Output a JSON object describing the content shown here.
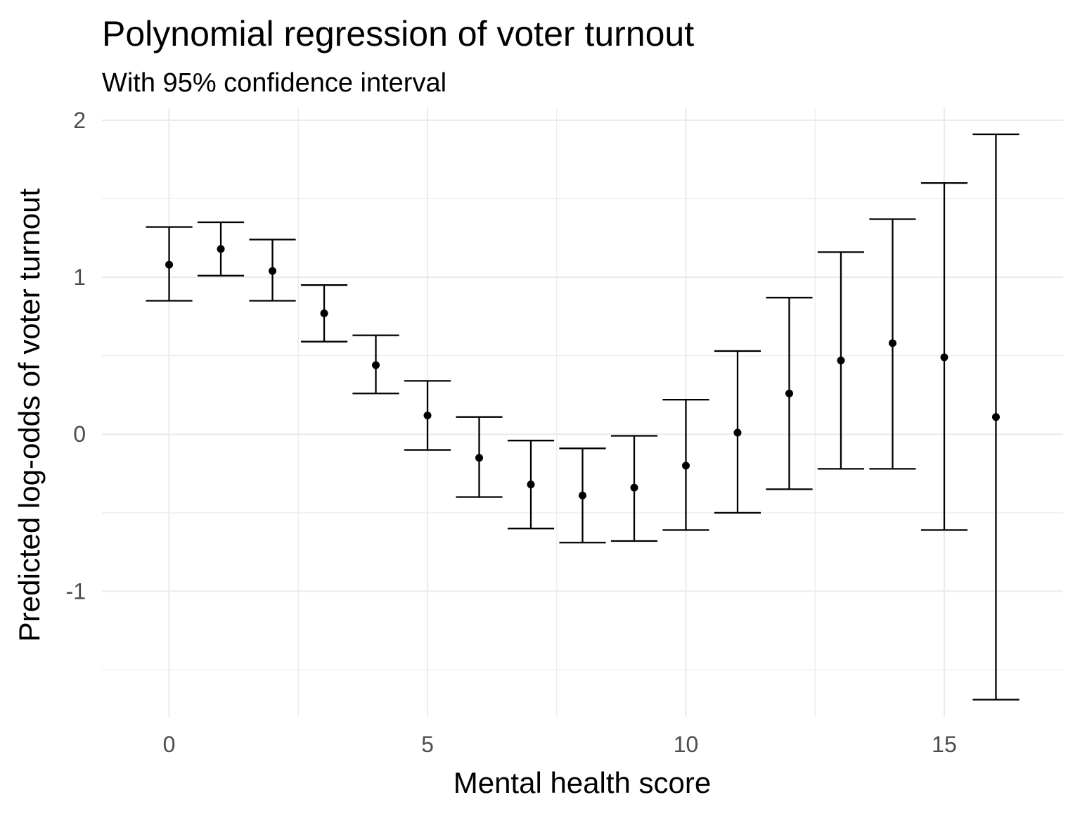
{
  "chart_data": {
    "type": "scatter",
    "title": "Polynomial regression of voter turnout",
    "subtitle": "With 95% confidence interval",
    "xlabel": "Mental health score",
    "ylabel": "Predicted log-odds of voter turnout",
    "xlim": [
      -1.3,
      17.3
    ],
    "ylim": [
      -1.8,
      2.08
    ],
    "x_ticks": [
      0,
      5,
      10,
      15
    ],
    "x_tick_labels": [
      "0",
      "5",
      "10",
      "15"
    ],
    "x_minor_ticks": [
      2.5,
      7.5,
      12.5
    ],
    "y_ticks": [
      -1,
      0,
      1,
      2
    ],
    "y_tick_labels": [
      "-1",
      "0",
      "1",
      "2"
    ],
    "y_minor_ticks": [
      -1.5,
      -0.5,
      0.5,
      1.5
    ],
    "grid": true,
    "legend": "none",
    "series": [
      {
        "x": [
          0,
          1,
          2,
          3,
          4,
          5,
          6,
          7,
          8,
          9,
          10,
          11,
          12,
          13,
          14,
          15,
          16
        ],
        "y": [
          1.08,
          1.18,
          1.04,
          0.77,
          0.44,
          0.12,
          -0.15,
          -0.32,
          -0.39,
          -0.34,
          -0.2,
          0.01,
          0.26,
          0.47,
          0.58,
          0.49,
          0.11
        ],
        "ymin": [
          0.85,
          1.01,
          0.85,
          0.59,
          0.26,
          -0.1,
          -0.4,
          -0.6,
          -0.69,
          -0.68,
          -0.61,
          -0.5,
          -0.35,
          -0.22,
          -0.22,
          -0.61,
          -1.69
        ],
        "ymax": [
          1.32,
          1.35,
          1.24,
          0.95,
          0.63,
          0.34,
          0.11,
          -0.04,
          -0.09,
          -0.01,
          0.22,
          0.53,
          0.87,
          1.16,
          1.37,
          1.6,
          1.91
        ]
      }
    ],
    "colors": {
      "points": "#000000",
      "errorbars": "#000000",
      "grid": "#ebebeb",
      "tick_text": "#4d4d4d"
    }
  }
}
